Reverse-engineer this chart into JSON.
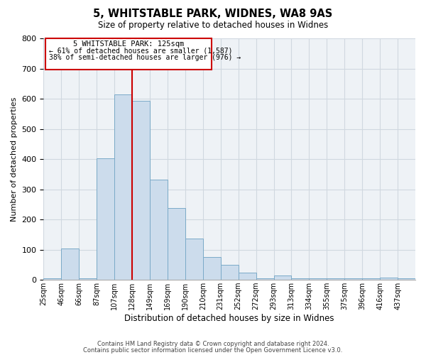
{
  "title": "5, WHITSTABLE PARK, WIDNES, WA8 9AS",
  "subtitle": "Size of property relative to detached houses in Widnes",
  "xlabel": "Distribution of detached houses by size in Widnes",
  "ylabel": "Number of detached properties",
  "footnote1": "Contains HM Land Registry data © Crown copyright and database right 2024.",
  "footnote2": "Contains public sector information licensed under the Open Government Licence v3.0.",
  "bin_labels": [
    "25sqm",
    "46sqm",
    "66sqm",
    "87sqm",
    "107sqm",
    "128sqm",
    "149sqm",
    "169sqm",
    "190sqm",
    "210sqm",
    "231sqm",
    "252sqm",
    "272sqm",
    "293sqm",
    "313sqm",
    "334sqm",
    "355sqm",
    "375sqm",
    "396sqm",
    "416sqm",
    "437sqm"
  ],
  "n_bins": 21,
  "bar_heights": [
    5,
    105,
    5,
    403,
    615,
    592,
    333,
    237,
    137,
    76,
    49,
    25,
    5,
    15,
    5,
    5,
    5,
    5,
    5,
    8,
    5
  ],
  "bar_color": "#ccdcec",
  "bar_edge_color": "#7aaac8",
  "marker_bin": 5,
  "marker_label": "5 WHITSTABLE PARK: 125sqm",
  "annotation_line1": "← 61% of detached houses are smaller (1,587)",
  "annotation_line2": "38% of semi-detached houses are larger (976) →",
  "marker_color": "#cc0000",
  "ylim": [
    0,
    800
  ],
  "yticks": [
    0,
    100,
    200,
    300,
    400,
    500,
    600,
    700,
    800
  ],
  "background_color": "#ffffff",
  "grid_color": "#d0d8e0",
  "ax_bg_color": "#eef2f6"
}
